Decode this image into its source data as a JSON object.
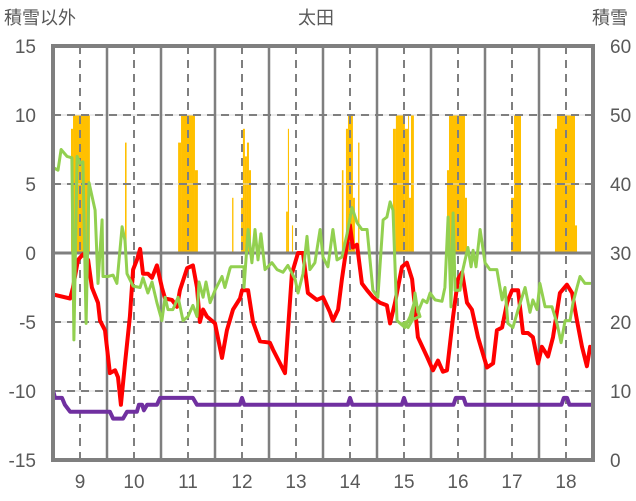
{
  "chart_data": {
    "type": "line",
    "title": "太田",
    "ylabel": "積雪以外",
    "y2label": "積雪",
    "xlim": [
      0,
      240
    ],
    "ylim": [
      -15,
      15
    ],
    "y2lim": [
      0,
      60
    ],
    "yticks": [
      15,
      10,
      5,
      0,
      -5,
      -10,
      -15
    ],
    "y2ticks": [
      60,
      50,
      40,
      30,
      20,
      10,
      0
    ],
    "ytick_labels": [
      "15",
      "10",
      "5",
      "0",
      "-5",
      "-10",
      "-15"
    ],
    "y2tick_labels": [
      "60",
      "50",
      "40",
      "30",
      "20",
      "10",
      "0"
    ],
    "categories": [
      "9",
      "10",
      "11",
      "12",
      "13",
      "14",
      "15",
      "16",
      "17",
      "18"
    ],
    "grid": true,
    "colors": {
      "bars": "#FFC000",
      "red": "#FF0000",
      "green": "#92D050",
      "purple": "#7030A0",
      "axis": "#7F7F7F"
    },
    "bars": [
      [
        8.0,
        8.9,
        9
      ],
      [
        8.9,
        16.4,
        10
      ],
      [
        32.0,
        32.7,
        8
      ],
      [
        55.6,
        56.9,
        8
      ],
      [
        56.9,
        63.1,
        10
      ],
      [
        63.1,
        64.4,
        6
      ],
      [
        79.6,
        80.2,
        4
      ],
      [
        83.6,
        84.4,
        4
      ],
      [
        84.4,
        85.3,
        9
      ],
      [
        85.3,
        86.2,
        7
      ],
      [
        86.2,
        87.1,
        8
      ],
      [
        87.1,
        88.0,
        6
      ],
      [
        103.6,
        104.4,
        3
      ],
      [
        104.4,
        104.9,
        9
      ],
      [
        106.2,
        106.7,
        2
      ],
      [
        128.4,
        129.1,
        6
      ],
      [
        130.2,
        131.1,
        9
      ],
      [
        131.1,
        133.3,
        10
      ],
      [
        133.3,
        134.2,
        4
      ],
      [
        135.6,
        136.2,
        8
      ],
      [
        151.1,
        152.4,
        9
      ],
      [
        152.4,
        156.4,
        10
      ],
      [
        156.4,
        157.8,
        9
      ],
      [
        157.8,
        158.2,
        10
      ],
      [
        158.2,
        159.1,
        4
      ],
      [
        159.1,
        160.4,
        10
      ],
      [
        175.1,
        176.0,
        6
      ],
      [
        176.0,
        183.1,
        10
      ],
      [
        183.1,
        184.0,
        4
      ],
      [
        203.6,
        204.9,
        4
      ],
      [
        204.9,
        208.0,
        10
      ],
      [
        223.1,
        224.0,
        9
      ],
      [
        224.0,
        232.0,
        10
      ],
      [
        232.0,
        232.9,
        2
      ]
    ],
    "series": [
      {
        "name": "red",
        "axis": "left",
        "points": [
          [
            0,
            -3.0
          ],
          [
            7.6,
            -3.3
          ],
          [
            8.9,
            -2.5
          ],
          [
            11.1,
            -0.5
          ],
          [
            13.3,
            -0.1
          ],
          [
            15.6,
            -0.5
          ],
          [
            17.3,
            -2.5
          ],
          [
            20,
            -3.6
          ],
          [
            20.9,
            -4.9
          ],
          [
            23.1,
            -5.6
          ],
          [
            25.3,
            -8.7
          ],
          [
            27.6,
            -8.5
          ],
          [
            28.9,
            -9.0
          ],
          [
            30.2,
            -11.0
          ],
          [
            32,
            -8.0
          ],
          [
            34.2,
            -4.6
          ],
          [
            35.6,
            -1.2
          ],
          [
            37.3,
            -0.5
          ],
          [
            38.7,
            0.3
          ],
          [
            40,
            -1.5
          ],
          [
            42.2,
            -1.5
          ],
          [
            44,
            -1.8
          ],
          [
            46.2,
            -0.9
          ],
          [
            48.4,
            -2.5
          ],
          [
            49.8,
            -3.3
          ],
          [
            52.9,
            -3.4
          ],
          [
            55.1,
            -3.9
          ],
          [
            56.4,
            -2.7
          ],
          [
            59.6,
            -1.1
          ],
          [
            62.2,
            -0.9
          ],
          [
            64,
            -2.5
          ],
          [
            65.3,
            -5.0
          ],
          [
            66.7,
            -4.1
          ],
          [
            68.4,
            -4.6
          ],
          [
            72,
            -5.1
          ],
          [
            75.1,
            -7.6
          ],
          [
            77.3,
            -5.6
          ],
          [
            80,
            -4.1
          ],
          [
            83.1,
            -3.3
          ],
          [
            84,
            -2.7
          ],
          [
            86.7,
            -2.7
          ],
          [
            88.9,
            -5.0
          ],
          [
            92,
            -6.4
          ],
          [
            96.4,
            -6.5
          ],
          [
            97.8,
            -7.0
          ],
          [
            103.1,
            -8.7
          ],
          [
            106.2,
            -1.5
          ],
          [
            108.9,
            0
          ],
          [
            111.1,
            0
          ],
          [
            113.3,
            -2.9
          ],
          [
            117.3,
            -3.4
          ],
          [
            120,
            -3.2
          ],
          [
            123.1,
            -4.3
          ],
          [
            124.4,
            -4.9
          ],
          [
            126.7,
            -4.1
          ],
          [
            128.4,
            -1.9
          ],
          [
            130.7,
            0.7
          ],
          [
            132,
            2.0
          ],
          [
            133.3,
            0.4
          ],
          [
            135.1,
            0.6
          ],
          [
            137.3,
            -2.2
          ],
          [
            139.6,
            -2.7
          ],
          [
            142.2,
            -3.2
          ],
          [
            145.3,
            -3.6
          ],
          [
            148.4,
            -3.8
          ],
          [
            149.8,
            -5.1
          ],
          [
            152,
            -3.6
          ],
          [
            155.1,
            -1.0
          ],
          [
            157.3,
            -0.7
          ],
          [
            159.6,
            -1.9
          ],
          [
            162.2,
            -6.1
          ],
          [
            166.2,
            -7.5
          ],
          [
            168.9,
            -8.5
          ],
          [
            171.1,
            -7.8
          ],
          [
            173.3,
            -8.6
          ],
          [
            175.1,
            -8.5
          ],
          [
            177.8,
            -4.6
          ],
          [
            180,
            -1.9
          ],
          [
            181.8,
            -1.4
          ],
          [
            184,
            -3.6
          ],
          [
            186.2,
            -4.1
          ],
          [
            188.9,
            -6.1
          ],
          [
            192.9,
            -8.3
          ],
          [
            195.6,
            -8.0
          ],
          [
            197.3,
            -5.6
          ],
          [
            199.6,
            -5.4
          ],
          [
            201.8,
            -3.6
          ],
          [
            204,
            -2.7
          ],
          [
            206.7,
            -2.7
          ],
          [
            208.9,
            -5.8
          ],
          [
            211.1,
            -5.8
          ],
          [
            213.3,
            -6.1
          ],
          [
            215.6,
            -8.0
          ],
          [
            217.3,
            -6.8
          ],
          [
            220,
            -7.5
          ],
          [
            222.2,
            -6.1
          ],
          [
            225.3,
            -2.9
          ],
          [
            228.4,
            -2.3
          ],
          [
            230.7,
            -2.9
          ],
          [
            232.9,
            -4.9
          ],
          [
            235.1,
            -6.8
          ],
          [
            237.3,
            -8.2
          ],
          [
            238.7,
            -6.8
          ]
        ]
      },
      {
        "name": "green",
        "axis": "left",
        "points": [
          [
            0,
            6.2
          ],
          [
            2.2,
            6.0
          ],
          [
            3.6,
            7.5
          ],
          [
            6.2,
            7.0
          ],
          [
            8.4,
            6.9
          ],
          [
            9.3,
            -6.3
          ],
          [
            10.7,
            7.0
          ],
          [
            12,
            6.5
          ],
          [
            13.3,
            6.6
          ],
          [
            14.7,
            -5.1
          ],
          [
            16,
            5.1
          ],
          [
            18.7,
            3.1
          ],
          [
            20,
            -2.2
          ],
          [
            21.8,
            2.4
          ],
          [
            22.2,
            -1.7
          ],
          [
            24.4,
            -1.7
          ],
          [
            26.7,
            -1.6
          ],
          [
            28.4,
            -2.2
          ],
          [
            30.7,
            1.9
          ],
          [
            32,
            0.9
          ],
          [
            32.9,
            -1.5
          ],
          [
            35.6,
            -2.4
          ],
          [
            38.7,
            -2.5
          ],
          [
            40,
            -1.8
          ],
          [
            42.2,
            -2.9
          ],
          [
            44,
            -2.1
          ],
          [
            46.2,
            -3.6
          ],
          [
            48.4,
            -4.9
          ],
          [
            49.8,
            -3.2
          ],
          [
            51.1,
            -4.1
          ],
          [
            53.3,
            -4.1
          ],
          [
            55.6,
            -3.2
          ],
          [
            57.8,
            -4.9
          ],
          [
            60,
            -4.6
          ],
          [
            62.2,
            -3.8
          ],
          [
            64,
            -4.6
          ],
          [
            64.9,
            -2.1
          ],
          [
            66.7,
            -3.2
          ],
          [
            68,
            -2.1
          ],
          [
            69.8,
            -3.6
          ],
          [
            72,
            -2.7
          ],
          [
            75.1,
            -1.7
          ],
          [
            76.4,
            -2.5
          ],
          [
            78.7,
            -1.1
          ],
          [
            79.1,
            -1.0
          ],
          [
            84,
            -1.0
          ],
          [
            84.9,
            -1.0
          ],
          [
            84.9,
            -2.5
          ],
          [
            86.7,
            1.7
          ],
          [
            88.4,
            -0.7
          ],
          [
            89.8,
            1.7
          ],
          [
            91.1,
            -0.5
          ],
          [
            92.4,
            1.4
          ],
          [
            94.2,
            -1.2
          ],
          [
            97.3,
            -0.7
          ],
          [
            99.6,
            -1.2
          ],
          [
            102.2,
            -1.4
          ],
          [
            104.4,
            -0.9
          ],
          [
            107.6,
            -1.9
          ],
          [
            108.9,
            -2.9
          ],
          [
            111.1,
            -1.5
          ],
          [
            112.9,
            1.2
          ],
          [
            114.2,
            -1.2
          ],
          [
            116.4,
            -0.7
          ],
          [
            118.7,
            1.7
          ],
          [
            120,
            -0.3
          ],
          [
            122.2,
            -1.0
          ],
          [
            124.4,
            1.7
          ],
          [
            126.2,
            -0.5
          ],
          [
            128.4,
            -0.3
          ],
          [
            130.7,
            1.4
          ],
          [
            132.9,
            3.3
          ],
          [
            135.1,
            2.2
          ],
          [
            137.3,
            1.7
          ],
          [
            139.6,
            1.7
          ],
          [
            142.2,
            -2.7
          ],
          [
            144.4,
            -3.2
          ],
          [
            146.7,
            2.4
          ],
          [
            148.4,
            2.6
          ],
          [
            149.8,
            3.7
          ],
          [
            151.1,
            3.1
          ],
          [
            152.9,
            -4.9
          ],
          [
            156.4,
            -5.4
          ],
          [
            158.7,
            -4.6
          ],
          [
            160.9,
            -3.4
          ],
          [
            163.1,
            -4.6
          ],
          [
            155.6,
            -5.1
          ],
          [
            157.8,
            -5.4
          ],
          [
            159.6,
            -4.9
          ],
          [
            160.9,
            -2.9
          ],
          [
            162.2,
            -4.3
          ],
          [
            164.4,
            -3.4
          ],
          [
            166.2,
            -3.6
          ],
          [
            167.6,
            -2.9
          ],
          [
            169.8,
            -3.4
          ],
          [
            172.9,
            -3.5
          ],
          [
            174.2,
            -2.5
          ],
          [
            175.6,
            2.6
          ],
          [
            176.9,
            -3.9
          ],
          [
            177.8,
            2.9
          ],
          [
            178.7,
            -2.7
          ],
          [
            180.9,
            -2.7
          ],
          [
            182.2,
            -1.2
          ],
          [
            184.4,
            0.4
          ],
          [
            185.8,
            -1.0
          ],
          [
            186.7,
            0.2
          ],
          [
            188,
            -1.0
          ],
          [
            189.8,
            1.7
          ],
          [
            192,
            -0.7
          ],
          [
            194.2,
            -1.2
          ],
          [
            197.3,
            -1.2
          ],
          [
            199.6,
            -3.4
          ],
          [
            200.9,
            -2.5
          ],
          [
            202.2,
            -5.1
          ],
          [
            204.4,
            -5.4
          ],
          [
            206.7,
            -4.1
          ],
          [
            209.8,
            -2.5
          ],
          [
            212,
            -4.3
          ],
          [
            213.3,
            -3.4
          ],
          [
            215.1,
            -4.1
          ],
          [
            216.4,
            -2.2
          ],
          [
            218.7,
            -3.9
          ],
          [
            221.8,
            -3.9
          ],
          [
            224,
            -5.1
          ],
          [
            225.8,
            -6.5
          ],
          [
            227.6,
            -4.9
          ],
          [
            229.8,
            -4.9
          ],
          [
            231.1,
            -3.6
          ],
          [
            232.9,
            -2.5
          ],
          [
            234.2,
            -1.7
          ],
          [
            236.4,
            -2.2
          ],
          [
            238.7,
            -2.2
          ]
        ]
      },
      {
        "name": "purple",
        "axis": "right",
        "points": [
          [
            0,
            10.1
          ],
          [
            0.9,
            9
          ],
          [
            4,
            9
          ],
          [
            5.3,
            8
          ],
          [
            7.6,
            7
          ],
          [
            25.3,
            7
          ],
          [
            26.7,
            6
          ],
          [
            31.1,
            6
          ],
          [
            32.9,
            7
          ],
          [
            37.3,
            7
          ],
          [
            38.2,
            8
          ],
          [
            39.6,
            8
          ],
          [
            40.4,
            7.2
          ],
          [
            41.8,
            8
          ],
          [
            46.2,
            8
          ],
          [
            47.6,
            9
          ],
          [
            62.2,
            9
          ],
          [
            64,
            8
          ],
          [
            83,
            8
          ],
          [
            84,
            9
          ],
          [
            85,
            8
          ],
          [
            131,
            8
          ],
          [
            132,
            9
          ],
          [
            133,
            8
          ],
          [
            155,
            8
          ],
          [
            156,
            9
          ],
          [
            157,
            8
          ],
          [
            178,
            8
          ],
          [
            179,
            9
          ],
          [
            182.5,
            9
          ],
          [
            183.5,
            8
          ],
          [
            226,
            8
          ],
          [
            227,
            9
          ],
          [
            228.5,
            9
          ],
          [
            229.5,
            8
          ],
          [
            240,
            8
          ]
        ]
      }
    ]
  }
}
